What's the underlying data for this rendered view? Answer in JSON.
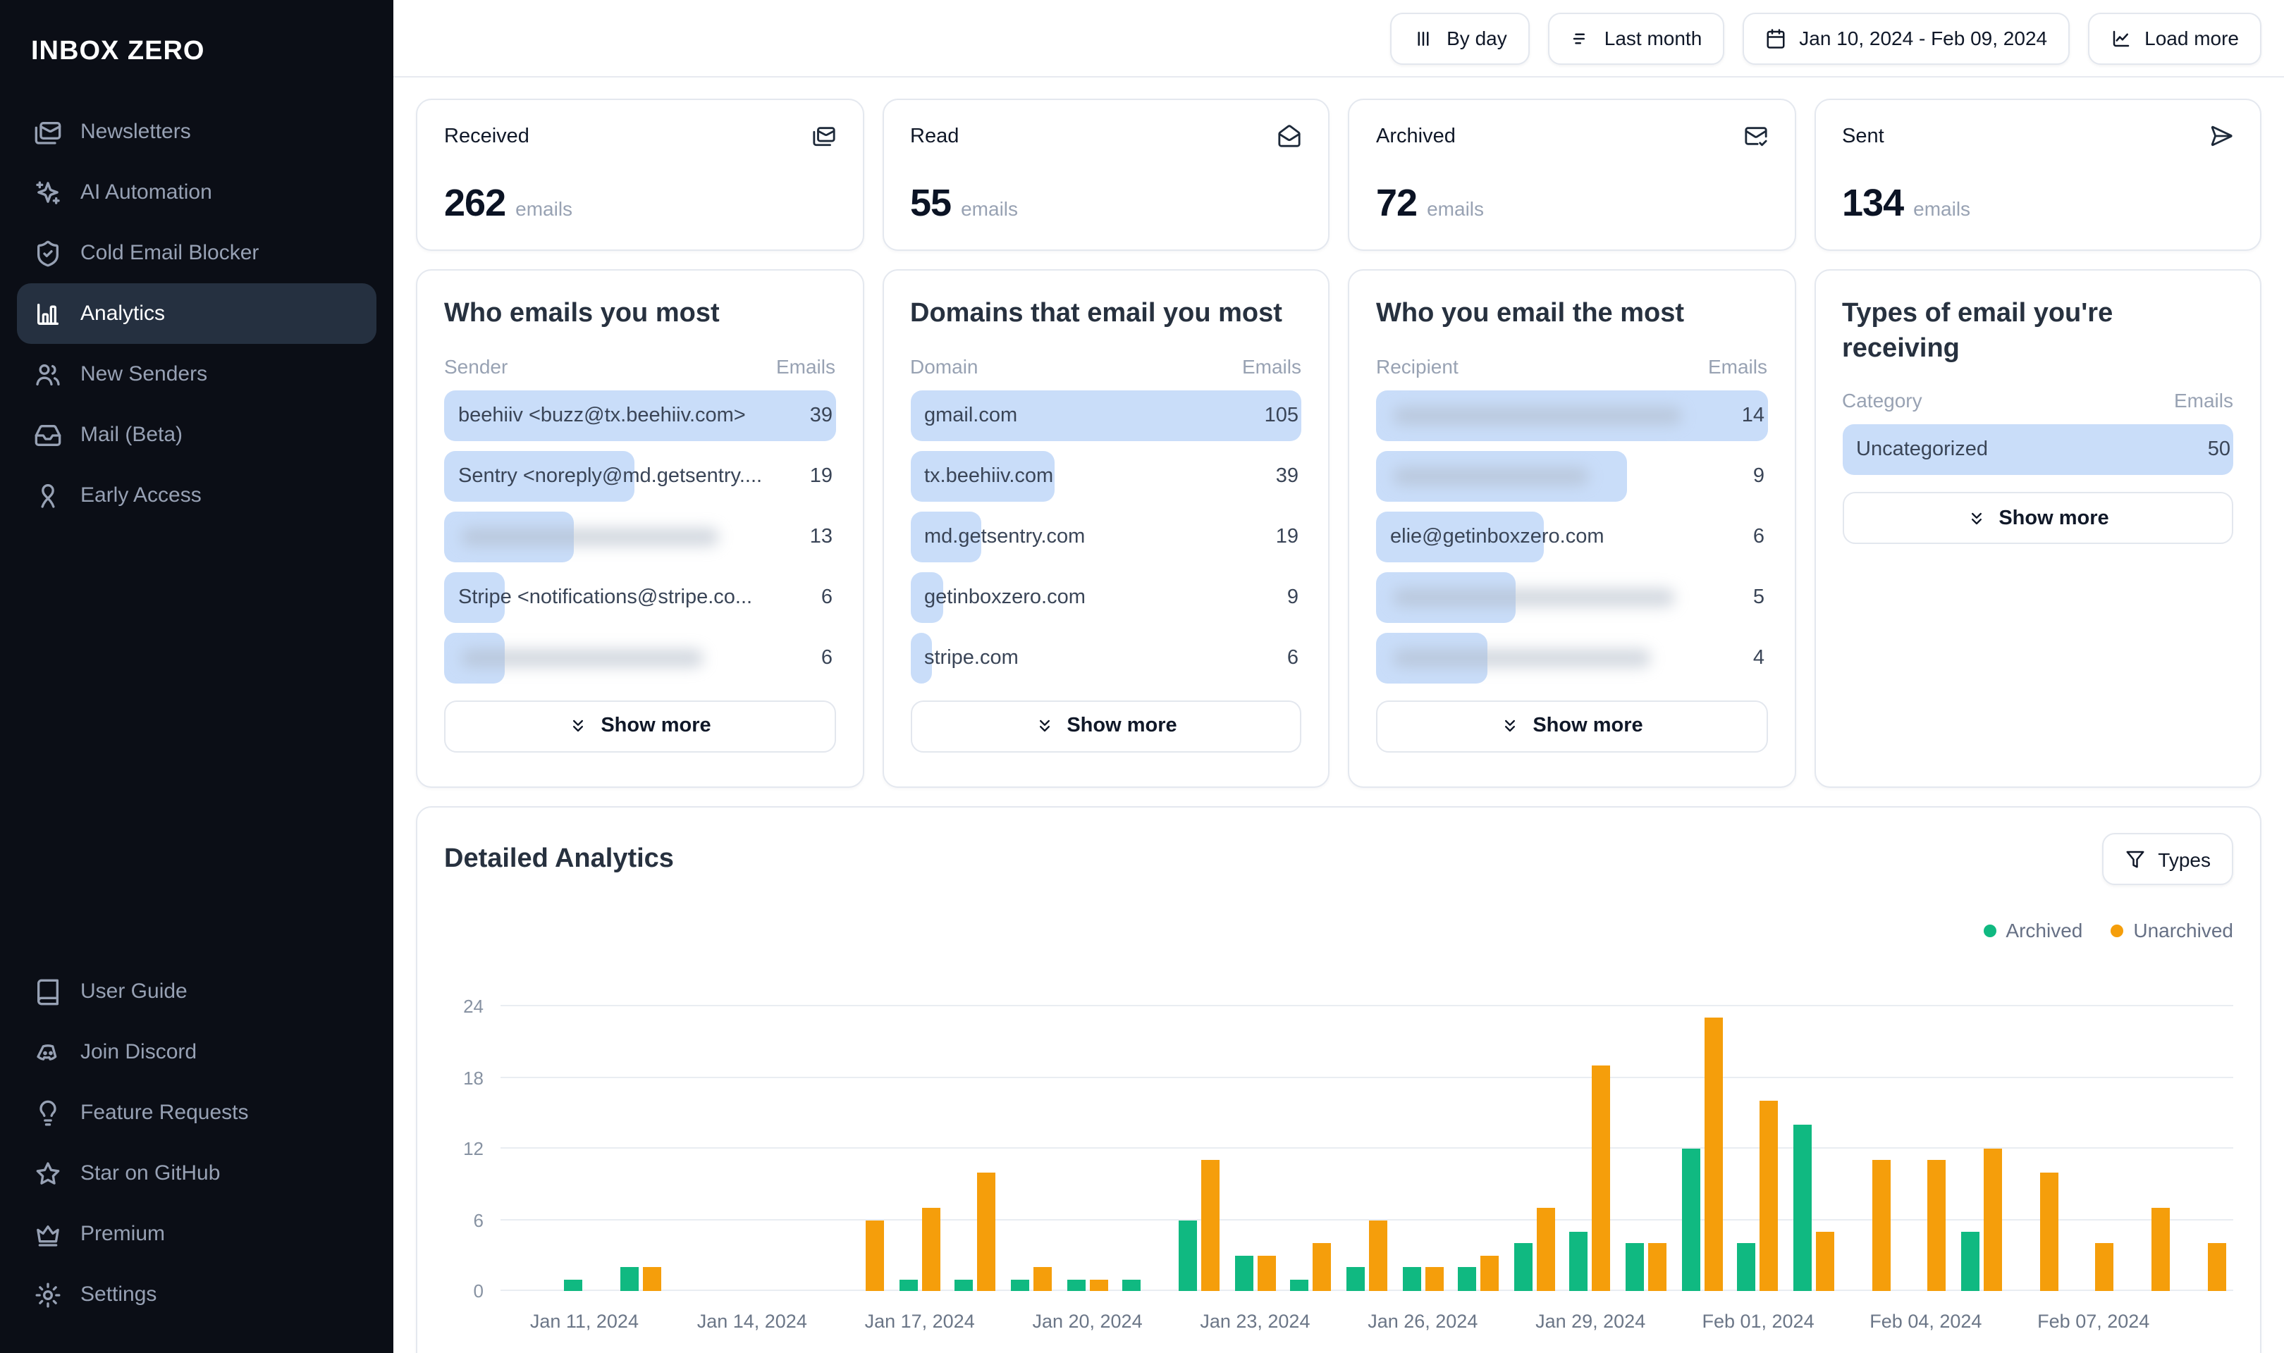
{
  "sidebar": {
    "logo": "INBOX ZERO",
    "items": [
      {
        "label": "Newsletters",
        "icon": "mails-icon",
        "active": false
      },
      {
        "label": "AI Automation",
        "icon": "sparkles-icon",
        "active": false
      },
      {
        "label": "Cold Email Blocker",
        "icon": "shield-check-icon",
        "active": false
      },
      {
        "label": "Analytics",
        "icon": "bar-chart-icon",
        "active": true
      },
      {
        "label": "New Senders",
        "icon": "users-icon",
        "active": false
      },
      {
        "label": "Mail (Beta)",
        "icon": "inbox-icon",
        "active": false
      },
      {
        "label": "Early Access",
        "icon": "ribbon-icon",
        "active": false
      }
    ],
    "footer_items": [
      {
        "label": "User Guide",
        "icon": "book-icon"
      },
      {
        "label": "Join Discord",
        "icon": "discord-icon"
      },
      {
        "label": "Feature Requests",
        "icon": "lightbulb-icon"
      },
      {
        "label": "Star on GitHub",
        "icon": "star-icon"
      },
      {
        "label": "Premium",
        "icon": "crown-icon"
      },
      {
        "label": "Settings",
        "icon": "gear-icon"
      }
    ]
  },
  "topbar": {
    "buttons": [
      {
        "name": "view-by-day-button",
        "label": "By day",
        "icon": "bar-columns-icon"
      },
      {
        "name": "period-last-month-button",
        "label": "Last month",
        "icon": "filter-lines-icon"
      },
      {
        "name": "date-range-button",
        "label": "Jan 10, 2024 - Feb 09, 2024",
        "icon": "calendar-icon"
      },
      {
        "name": "load-more-button",
        "label": "Load more",
        "icon": "chart-line-icon"
      }
    ]
  },
  "stats": [
    {
      "label": "Received",
      "value": "262",
      "unit": "emails",
      "icon": "mails-icon"
    },
    {
      "label": "Read",
      "value": "55",
      "unit": "emails",
      "icon": "mail-open-icon"
    },
    {
      "label": "Archived",
      "value": "72",
      "unit": "emails",
      "icon": "mail-check-icon"
    },
    {
      "label": "Sent",
      "value": "134",
      "unit": "emails",
      "icon": "send-icon"
    }
  ],
  "labels": {
    "show_more": "Show more"
  },
  "list_cards": [
    {
      "title": "Who emails you most",
      "col_label": "Sender",
      "value_label": "Emails",
      "rows": [
        {
          "label": "beehiiv <buzz@tx.beehiiv.com>",
          "value": 39,
          "blurred": false
        },
        {
          "label": "Sentry <noreply@md.getsentry....",
          "value": 19,
          "blurred": false
        },
        {
          "label": "",
          "value": 13,
          "blurred": true,
          "smudge_pct": 66
        },
        {
          "label": "Stripe <notifications@stripe.co...",
          "value": 6,
          "blurred": false
        },
        {
          "label": "",
          "value": 6,
          "blurred": true,
          "smudge_pct": 62
        }
      ]
    },
    {
      "title": "Domains that email you most",
      "col_label": "Domain",
      "value_label": "Emails",
      "rows": [
        {
          "label": "gmail.com",
          "value": 105,
          "blurred": false
        },
        {
          "label": "tx.beehiiv.com",
          "value": 39,
          "blurred": false
        },
        {
          "label": "md.getsentry.com",
          "value": 19,
          "blurred": false
        },
        {
          "label": "getinboxzero.com",
          "value": 9,
          "blurred": false
        },
        {
          "label": "stripe.com",
          "value": 6,
          "blurred": false
        }
      ]
    },
    {
      "title": "Who you email the most",
      "col_label": "Recipient",
      "value_label": "Emails",
      "rows": [
        {
          "label": "",
          "value": 14,
          "blurred": true,
          "smudge_pct": 74
        },
        {
          "label": "",
          "value": 9,
          "blurred": true,
          "smudge_pct": 50
        },
        {
          "label": "elie@getinboxzero.com",
          "value": 6,
          "blurred": false
        },
        {
          "label": "",
          "value": 5,
          "blurred": true,
          "smudge_pct": 72
        },
        {
          "label": "",
          "value": 4,
          "blurred": true,
          "smudge_pct": 66
        }
      ]
    },
    {
      "title": "Types of email you're receiving",
      "col_label": "Category",
      "value_label": "Emails",
      "rows": [
        {
          "label": "Uncategorized",
          "value": 50,
          "blurred": false
        }
      ]
    }
  ],
  "detailed": {
    "title": "Detailed Analytics",
    "types_button": "Types"
  },
  "colors": {
    "archived": "#10b981",
    "unarchived": "#f59e0b",
    "row_bar": "#c9ddf9"
  },
  "chart_data": {
    "type": "bar",
    "title": "Detailed Analytics",
    "xlabel": "",
    "ylabel": "",
    "grid": "horizontal",
    "legend_position": "top-right",
    "ylim": [
      0,
      24
    ],
    "yticks": [
      0,
      6,
      12,
      18,
      24
    ],
    "x": [
      "Jan 10, 2024",
      "Jan 11, 2024",
      "Jan 12, 2024",
      "Jan 13, 2024",
      "Jan 14, 2024",
      "Jan 15, 2024",
      "Jan 16, 2024",
      "Jan 17, 2024",
      "Jan 18, 2024",
      "Jan 19, 2024",
      "Jan 20, 2024",
      "Jan 21, 2024",
      "Jan 22, 2024",
      "Jan 23, 2024",
      "Jan 24, 2024",
      "Jan 25, 2024",
      "Jan 26, 2024",
      "Jan 27, 2024",
      "Jan 28, 2024",
      "Jan 29, 2024",
      "Jan 30, 2024",
      "Jan 31, 2024",
      "Feb 01, 2024",
      "Feb 02, 2024",
      "Feb 03, 2024",
      "Feb 04, 2024",
      "Feb 05, 2024",
      "Feb 06, 2024",
      "Feb 07, 2024",
      "Feb 08, 2024",
      "Feb 09, 2024"
    ],
    "xticks": [
      {
        "i": 1,
        "label": "Jan 11, 2024"
      },
      {
        "i": 4,
        "label": "Jan 14, 2024"
      },
      {
        "i": 7,
        "label": "Jan 17, 2024"
      },
      {
        "i": 10,
        "label": "Jan 20, 2024"
      },
      {
        "i": 13,
        "label": "Jan 23, 2024"
      },
      {
        "i": 16,
        "label": "Jan 26, 2024"
      },
      {
        "i": 19,
        "label": "Jan 29, 2024"
      },
      {
        "i": 22,
        "label": "Feb 01, 2024"
      },
      {
        "i": 25,
        "label": "Feb 04, 2024"
      },
      {
        "i": 28,
        "label": "Feb 07, 2024"
      }
    ],
    "series": [
      {
        "name": "Archived",
        "color": "#10b981",
        "values": [
          0,
          1,
          2,
          0,
          0,
          0,
          0,
          1,
          1,
          1,
          1,
          1,
          6,
          3,
          1,
          2,
          2,
          2,
          4,
          5,
          4,
          12,
          4,
          14,
          0,
          0,
          5,
          0,
          0,
          0,
          0
        ]
      },
      {
        "name": "Unarchived",
        "color": "#f59e0b",
        "values": [
          0,
          0,
          2,
          0,
          0,
          0,
          6,
          7,
          10,
          2,
          1,
          0,
          11,
          3,
          4,
          6,
          2,
          3,
          7,
          19,
          4,
          23,
          16,
          5,
          11,
          11,
          12,
          10,
          4,
          7,
          4
        ]
      }
    ]
  }
}
